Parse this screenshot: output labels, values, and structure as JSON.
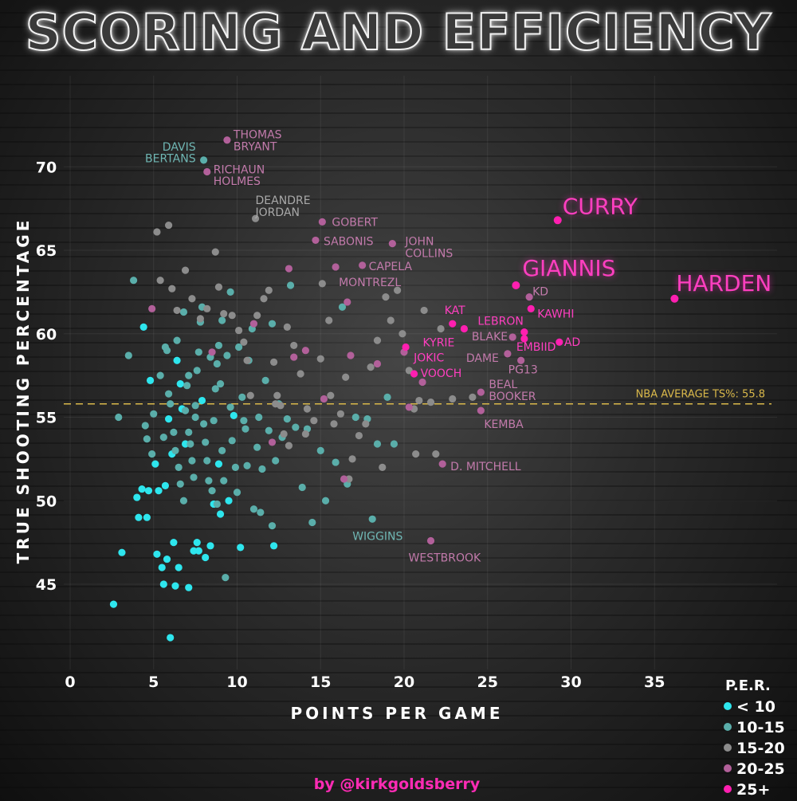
{
  "title": "SCORING AND EFFICIENCY",
  "credit": "by @kirkgoldsberry",
  "colors": {
    "per_lt10": "#2ee6ee",
    "per_10_15": "#5aaeaa",
    "per_15_20": "#8c8c8c",
    "per_20_25": "#b2609a",
    "per_25plus": "#ff1fb0",
    "average_line": "#d9b84a",
    "axis_text": "#ffffff"
  },
  "chart_data": {
    "type": "scatter",
    "title": "SCORING AND EFFICIENCY",
    "xlabel": "POINTS PER GAME",
    "ylabel": "TRUE SHOOTING PERCENTAGE",
    "xlim": [
      0,
      40
    ],
    "ylim": [
      41,
      74
    ],
    "x_ticks": [
      0,
      5,
      10,
      15,
      20,
      25,
      30,
      35
    ],
    "y_ticks": [
      45,
      50,
      55,
      60,
      65,
      70
    ],
    "grid": true,
    "legend": {
      "title": "P.E.R.",
      "placement": "bottom-right",
      "entries": [
        {
          "label": "< 10",
          "key": "per_lt10"
        },
        {
          "label": "10-15",
          "key": "per_10_15"
        },
        {
          "label": "15-20",
          "key": "per_15_20"
        },
        {
          "label": "20-25",
          "key": "per_20_25"
        },
        {
          "label": "25+",
          "key": "per_25plus"
        }
      ]
    },
    "reference_line": {
      "value": 55.8,
      "label": "NBA AVERAGE TS%: 55.8"
    },
    "labeled_points": [
      {
        "label": [
          "CURRY"
        ],
        "x": 29.2,
        "y": 66.8,
        "g": 4,
        "big": true
      },
      {
        "label": [
          "GIANNIS"
        ],
        "x": 26.7,
        "y": 62.9,
        "g": 4,
        "big": true
      },
      {
        "label": [
          "HARDEN"
        ],
        "x": 36.2,
        "y": 62.1,
        "g": 4,
        "big": true
      },
      {
        "label": [
          "KD"
        ],
        "x": 27.5,
        "y": 62.2,
        "g": 3
      },
      {
        "label": [
          "KAWHI"
        ],
        "x": 27.6,
        "y": 61.5,
        "g": 4
      },
      {
        "label": [
          "LEBRON"
        ],
        "x": 27.2,
        "y": 60.1,
        "g": 4
      },
      {
        "label": [
          "BLAKE"
        ],
        "x": 26.5,
        "y": 59.8,
        "g": 3
      },
      {
        "label": [
          "EMBIID"
        ],
        "x": 27.2,
        "y": 59.7,
        "g": 4
      },
      {
        "label": [
          "AD"
        ],
        "x": 29.3,
        "y": 59.5,
        "g": 4
      },
      {
        "label": [
          "DAME"
        ],
        "x": 26.2,
        "y": 58.8,
        "g": 3
      },
      {
        "label": [
          "PG13"
        ],
        "x": 27.0,
        "y": 58.4,
        "g": 3
      },
      {
        "label": [
          "KAT"
        ],
        "x": 22.9,
        "y": 60.6,
        "g": 4
      },
      {
        "label": [
          "KYRIE"
        ],
        "x": 23.6,
        "y": 60.3,
        "g": 4
      },
      {
        "label": [
          "JOKIC"
        ],
        "x": 20.1,
        "y": 59.2,
        "g": 4
      },
      {
        "label": [
          "VOOCH"
        ],
        "x": 20.6,
        "y": 57.6,
        "g": 4
      },
      {
        "label": [
          "BEAL",
          "BOOKER"
        ],
        "x": 24.6,
        "y": 56.5,
        "g": 3
      },
      {
        "label": [
          "KEMBA"
        ],
        "x": 24.6,
        "y": 55.4,
        "g": 3
      },
      {
        "label": [
          "D. MITCHELL"
        ],
        "x": 22.3,
        "y": 52.2,
        "g": 3
      },
      {
        "label": [
          "WIGGINS"
        ],
        "x": 18.1,
        "y": 48.9,
        "g": 1
      },
      {
        "label": [
          "WESTBROOK"
        ],
        "x": 21.6,
        "y": 47.6,
        "g": 3
      },
      {
        "label": [
          "THOMAS",
          "BRYANT"
        ],
        "x": 9.4,
        "y": 71.6,
        "g": 3
      },
      {
        "label": [
          "DAVIS",
          "BERTANS"
        ],
        "x": 8.0,
        "y": 70.4,
        "g": 1
      },
      {
        "label": [
          "RICHAUN",
          "HOLMES"
        ],
        "x": 8.2,
        "y": 69.7,
        "g": 3
      },
      {
        "label": [
          "DEANDRE",
          "JORDAN"
        ],
        "x": 11.1,
        "y": 66.9,
        "g": 2
      },
      {
        "label": [
          "GOBERT"
        ],
        "x": 15.1,
        "y": 66.7,
        "g": 3
      },
      {
        "label": [
          "SABONIS"
        ],
        "x": 14.7,
        "y": 65.6,
        "g": 3
      },
      {
        "label": [
          "JOHN",
          "COLLINS"
        ],
        "x": 19.3,
        "y": 65.4,
        "g": 3
      },
      {
        "label": [
          "CAPELA"
        ],
        "x": 17.5,
        "y": 64.1,
        "g": 3
      },
      {
        "label": [
          "MONTREZL"
        ],
        "x": 15.9,
        "y": 64.0,
        "g": 3
      }
    ],
    "points": [
      [
        2.6,
        43.8,
        0
      ],
      [
        3.1,
        46.9,
        0
      ],
      [
        4.0,
        50.2,
        0
      ],
      [
        4.1,
        49.0,
        0
      ],
      [
        4.3,
        50.7,
        0
      ],
      [
        4.4,
        60.4,
        0
      ],
      [
        4.6,
        49.0,
        0
      ],
      [
        4.7,
        50.6,
        0
      ],
      [
        4.8,
        57.2,
        0
      ],
      [
        5.2,
        46.8,
        0
      ],
      [
        5.3,
        50.6,
        0
      ],
      [
        5.5,
        46.0,
        0
      ],
      [
        5.6,
        45.0,
        0
      ],
      [
        5.7,
        50.9,
        0
      ],
      [
        5.8,
        46.5,
        0
      ],
      [
        6.0,
        41.8,
        0
      ],
      [
        6.2,
        47.5,
        0
      ],
      [
        6.3,
        44.9,
        0
      ],
      [
        6.5,
        46.0,
        0
      ],
      [
        6.1,
        52.8,
        0
      ],
      [
        6.4,
        58.4,
        0
      ],
      [
        6.6,
        57.0,
        0
      ],
      [
        6.9,
        53.4,
        0
      ],
      [
        7.1,
        44.8,
        0
      ],
      [
        7.4,
        47.0,
        0
      ],
      [
        7.6,
        47.5,
        0
      ],
      [
        7.7,
        47.0,
        0
      ],
      [
        8.1,
        46.6,
        0
      ],
      [
        8.4,
        47.3,
        0
      ],
      [
        8.6,
        49.8,
        0
      ],
      [
        5.9,
        54.9,
        0
      ],
      [
        5.1,
        52.2,
        0
      ],
      [
        6.7,
        55.5,
        0
      ],
      [
        7.9,
        56.0,
        0
      ],
      [
        9.0,
        49.2,
        0
      ],
      [
        9.5,
        50.0,
        0
      ],
      [
        10.2,
        47.2,
        0
      ],
      [
        12.2,
        47.3,
        0
      ],
      [
        9.8,
        55.1,
        0
      ],
      [
        8.9,
        52.2,
        0
      ],
      [
        2.9,
        55.0,
        1
      ],
      [
        3.5,
        58.7,
        1
      ],
      [
        3.8,
        63.2,
        1
      ],
      [
        4.5,
        54.5,
        1
      ],
      [
        4.6,
        53.7,
        1
      ],
      [
        4.9,
        52.8,
        1
      ],
      [
        5.0,
        55.2,
        1
      ],
      [
        5.4,
        57.5,
        1
      ],
      [
        5.6,
        53.8,
        1
      ],
      [
        5.8,
        59.0,
        1
      ],
      [
        5.9,
        56.4,
        1
      ],
      [
        6.0,
        55.8,
        1
      ],
      [
        6.2,
        54.1,
        1
      ],
      [
        6.3,
        53.0,
        1
      ],
      [
        6.5,
        52.0,
        1
      ],
      [
        6.6,
        51.0,
        1
      ],
      [
        6.8,
        50.0,
        1
      ],
      [
        6.9,
        55.4,
        1
      ],
      [
        7.0,
        56.9,
        1
      ],
      [
        7.1,
        54.1,
        1
      ],
      [
        7.2,
        53.4,
        1
      ],
      [
        7.3,
        52.4,
        1
      ],
      [
        7.4,
        51.4,
        1
      ],
      [
        7.5,
        55.0,
        1
      ],
      [
        7.6,
        57.8,
        1
      ],
      [
        7.7,
        58.9,
        1
      ],
      [
        7.8,
        60.7,
        1
      ],
      [
        7.9,
        61.6,
        1
      ],
      [
        8.0,
        54.6,
        1
      ],
      [
        8.1,
        53.5,
        1
      ],
      [
        8.2,
        52.4,
        1
      ],
      [
        8.3,
        51.2,
        1
      ],
      [
        8.5,
        50.6,
        1
      ],
      [
        8.6,
        54.8,
        1
      ],
      [
        8.7,
        56.7,
        1
      ],
      [
        8.8,
        58.2,
        1
      ],
      [
        8.9,
        59.3,
        1
      ],
      [
        9.0,
        57.0,
        1
      ],
      [
        9.1,
        53.0,
        1
      ],
      [
        9.2,
        51.2,
        1
      ],
      [
        9.3,
        45.4,
        1
      ],
      [
        9.4,
        58.7,
        1
      ],
      [
        9.6,
        55.6,
        1
      ],
      [
        9.7,
        53.6,
        1
      ],
      [
        9.9,
        52.0,
        1
      ],
      [
        10.0,
        50.5,
        1
      ],
      [
        10.1,
        59.2,
        1
      ],
      [
        10.3,
        56.2,
        1
      ],
      [
        10.5,
        54.3,
        1
      ],
      [
        10.6,
        52.1,
        1
      ],
      [
        10.7,
        58.4,
        1
      ],
      [
        10.9,
        60.3,
        1
      ],
      [
        11.0,
        49.5,
        1
      ],
      [
        11.2,
        53.2,
        1
      ],
      [
        11.3,
        55.0,
        1
      ],
      [
        11.5,
        51.9,
        1
      ],
      [
        11.7,
        57.2,
        1
      ],
      [
        11.9,
        54.2,
        1
      ],
      [
        12.1,
        60.6,
        1
      ],
      [
        12.3,
        52.4,
        1
      ],
      [
        12.5,
        55.8,
        1
      ],
      [
        12.7,
        53.8,
        1
      ],
      [
        13.0,
        54.9,
        1
      ],
      [
        13.2,
        62.9,
        1
      ],
      [
        13.5,
        54.4,
        1
      ],
      [
        13.9,
        50.8,
        1
      ],
      [
        14.2,
        54.3,
        1
      ],
      [
        14.5,
        48.7,
        1
      ],
      [
        15.0,
        53.0,
        1
      ],
      [
        15.3,
        50.0,
        1
      ],
      [
        15.9,
        52.3,
        1
      ],
      [
        16.3,
        61.6,
        1
      ],
      [
        16.6,
        51.0,
        1
      ],
      [
        17.1,
        55.0,
        1
      ],
      [
        17.8,
        54.9,
        1
      ],
      [
        18.4,
        53.4,
        1
      ],
      [
        19.0,
        56.2,
        1
      ],
      [
        19.4,
        53.4,
        1
      ],
      [
        6.8,
        61.3,
        1
      ],
      [
        7.1,
        57.5,
        1
      ],
      [
        8.4,
        58.6,
        1
      ],
      [
        9.6,
        62.5,
        1
      ],
      [
        5.7,
        59.2,
        1
      ],
      [
        6.4,
        59.6,
        1
      ],
      [
        7.5,
        55.7,
        1
      ],
      [
        11.4,
        49.3,
        1
      ],
      [
        12.1,
        48.5,
        1
      ],
      [
        8.8,
        49.8,
        1
      ],
      [
        10.4,
        54.8,
        1
      ],
      [
        9.1,
        60.8,
        1
      ],
      [
        5.2,
        66.1,
        2
      ],
      [
        5.9,
        66.5,
        2
      ],
      [
        5.4,
        63.2,
        2
      ],
      [
        6.1,
        62.7,
        2
      ],
      [
        6.4,
        61.4,
        2
      ],
      [
        6.9,
        63.8,
        2
      ],
      [
        7.3,
        62.1,
        2
      ],
      [
        7.8,
        60.9,
        2
      ],
      [
        8.2,
        61.5,
        2
      ],
      [
        8.7,
        64.9,
        2
      ],
      [
        8.9,
        62.8,
        2
      ],
      [
        9.2,
        61.2,
        2
      ],
      [
        9.7,
        61.1,
        2
      ],
      [
        10.1,
        60.2,
        2
      ],
      [
        10.4,
        59.5,
        2
      ],
      [
        10.6,
        58.4,
        2
      ],
      [
        10.8,
        56.3,
        2
      ],
      [
        11.2,
        61.1,
        2
      ],
      [
        11.6,
        62.1,
        2
      ],
      [
        11.9,
        62.6,
        2
      ],
      [
        12.2,
        58.3,
        2
      ],
      [
        12.4,
        56.3,
        2
      ],
      [
        12.6,
        55.7,
        2
      ],
      [
        12.8,
        54.0,
        2
      ],
      [
        13.0,
        60.4,
        2
      ],
      [
        13.4,
        59.3,
        2
      ],
      [
        13.8,
        57.6,
        2
      ],
      [
        14.2,
        55.5,
        2
      ],
      [
        14.6,
        54.8,
        2
      ],
      [
        15.0,
        58.5,
        2
      ],
      [
        15.1,
        63.0,
        2
      ],
      [
        15.5,
        60.8,
        2
      ],
      [
        15.8,
        54.6,
        2
      ],
      [
        16.2,
        55.2,
        2
      ],
      [
        16.5,
        57.4,
        2
      ],
      [
        16.9,
        52.5,
        2
      ],
      [
        17.3,
        53.9,
        2
      ],
      [
        17.7,
        54.6,
        2
      ],
      [
        18.0,
        58.0,
        2
      ],
      [
        18.4,
        59.6,
        2
      ],
      [
        18.7,
        52.0,
        2
      ],
      [
        18.9,
        62.2,
        2
      ],
      [
        19.2,
        60.8,
        2
      ],
      [
        19.6,
        62.6,
        2
      ],
      [
        19.9,
        60.0,
        2
      ],
      [
        20.3,
        57.8,
        2
      ],
      [
        20.6,
        55.5,
        2
      ],
      [
        20.9,
        56.0,
        2
      ],
      [
        21.2,
        61.4,
        2
      ],
      [
        21.6,
        55.9,
        2
      ],
      [
        21.9,
        52.8,
        2
      ],
      [
        20.7,
        52.8,
        2
      ],
      [
        22.2,
        60.3,
        2
      ],
      [
        22.9,
        56.1,
        2
      ],
      [
        24.1,
        56.2,
        2
      ],
      [
        13.1,
        53.3,
        2
      ],
      [
        14.1,
        54.0,
        2
      ],
      [
        12.3,
        55.8,
        2
      ],
      [
        16.7,
        51.3,
        2
      ],
      [
        15.6,
        56.3,
        2
      ],
      [
        4.9,
        61.5,
        3
      ],
      [
        8.5,
        58.9,
        3
      ],
      [
        11.0,
        60.6,
        3
      ],
      [
        13.1,
        63.9,
        3
      ],
      [
        14.1,
        59.0,
        3
      ],
      [
        15.2,
        56.1,
        3
      ],
      [
        16.6,
        61.9,
        3
      ],
      [
        16.8,
        58.7,
        3
      ],
      [
        16.4,
        51.3,
        3
      ],
      [
        18.4,
        58.2,
        3
      ],
      [
        20.0,
        58.9,
        3
      ],
      [
        20.3,
        55.6,
        3
      ],
      [
        21.1,
        57.1,
        3
      ],
      [
        12.1,
        53.5,
        3
      ],
      [
        13.4,
        58.6,
        3
      ]
    ]
  }
}
